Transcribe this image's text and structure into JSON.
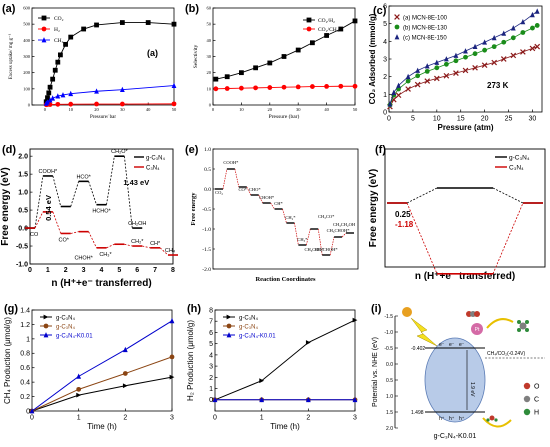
{
  "chart_data": [
    {
      "type": "line",
      "panel_label": "(a)",
      "inner_label": "(a)",
      "xlabel": "Pressure/ bar",
      "ylabel": "Excess uptake/ mg g⁻¹",
      "xlim": [
        -5,
        50
      ],
      "ylim": [
        0,
        600
      ],
      "xticks": [
        0,
        10,
        20,
        30,
        40,
        50
      ],
      "yticks": [
        0,
        100,
        200,
        300,
        400,
        500,
        600
      ],
      "legend_position": "top-left",
      "series": [
        {
          "name": "CO₂",
          "color": "#000000",
          "marker": "square",
          "x": [
            0.5,
            1,
            1.5,
            2,
            3,
            4,
            5,
            6,
            8,
            10,
            15,
            20,
            30,
            40,
            50
          ],
          "y": [
            20,
            45,
            75,
            110,
            160,
            215,
            265,
            310,
            375,
            420,
            470,
            495,
            510,
            510,
            500
          ]
        },
        {
          "name": "H₂",
          "color": "#ff0000",
          "marker": "circle",
          "x": [
            0.5,
            1,
            2,
            5,
            10,
            20,
            30,
            50
          ],
          "y": [
            2,
            3,
            3,
            4,
            5,
            6,
            6,
            7
          ]
        },
        {
          "name": "CH₄",
          "color": "#0000ff",
          "marker": "triangle",
          "x": [
            0.5,
            1,
            2,
            3,
            5,
            7,
            10,
            20,
            30,
            50
          ],
          "y": [
            10,
            18,
            30,
            42,
            55,
            62,
            70,
            85,
            95,
            120
          ]
        }
      ]
    },
    {
      "type": "line",
      "panel_label": "(b)",
      "xlabel": "Pressure (bar)",
      "ylabel": "Selectivity",
      "xlim": [
        0,
        50
      ],
      "ylim": [
        0,
        60
      ],
      "xticks": [
        0,
        10,
        20,
        30,
        40,
        50
      ],
      "yticks": [
        0,
        10,
        20,
        30,
        40,
        50,
        60
      ],
      "legend_position": "top-right",
      "series": [
        {
          "name": "CO₂/H₂",
          "color": "#000000",
          "marker": "square",
          "x": [
            1,
            5,
            10,
            15,
            20,
            25,
            30,
            35,
            40,
            45,
            50
          ],
          "y": [
            16,
            17.5,
            20,
            23,
            26,
            30,
            34,
            38.5,
            43,
            47,
            52
          ]
        },
        {
          "name": "CO₂/CH₄",
          "color": "#ff0000",
          "marker": "circle",
          "x": [
            1,
            5,
            10,
            15,
            20,
            25,
            30,
            35,
            40,
            45,
            50
          ],
          "y": [
            10,
            10.2,
            10.4,
            10.6,
            10.8,
            11,
            11.2,
            11.4,
            11.5,
            11.6,
            11.6
          ]
        }
      ]
    },
    {
      "type": "line",
      "panel_label": "(c)",
      "xlabel": "Pressure (atm)",
      "ylabel": "CO₂ Adsorbed (mmol/g)",
      "annotation": "273 K",
      "xlim": [
        0,
        32
      ],
      "ylim": [
        0,
        6
      ],
      "xticks": [
        0,
        5,
        10,
        15,
        20,
        25,
        30
      ],
      "yticks": [
        0,
        1,
        2,
        3,
        4,
        5,
        6
      ],
      "legend_position": "top-left",
      "series": [
        {
          "name": "(a)  MCN-8E-100",
          "color": "#8b1a1a",
          "marker": "x",
          "x": [
            0.2,
            1,
            2,
            4,
            6,
            8,
            10,
            12,
            14,
            16,
            18,
            20,
            22,
            24,
            26,
            28,
            30,
            31
          ],
          "y": [
            0.3,
            0.7,
            0.95,
            1.3,
            1.55,
            1.75,
            1.9,
            2.05,
            2.2,
            2.35,
            2.5,
            2.65,
            2.8,
            3.0,
            3.2,
            3.4,
            3.6,
            3.7
          ]
        },
        {
          "name": "(b)  MCN-8E-130",
          "color": "#1a8c1a",
          "marker": "circle",
          "x": [
            0.2,
            1,
            2,
            4,
            6,
            8,
            10,
            12,
            14,
            16,
            18,
            20,
            22,
            24,
            26,
            28,
            30,
            31
          ],
          "y": [
            0.4,
            0.95,
            1.3,
            1.75,
            2.05,
            2.3,
            2.5,
            2.7,
            2.9,
            3.1,
            3.3,
            3.5,
            3.7,
            3.95,
            4.2,
            4.5,
            4.75,
            4.9
          ]
        },
        {
          "name": "(c)  MCN-8E-150",
          "color": "#1a237e",
          "marker": "triangle",
          "x": [
            0.2,
            1,
            2,
            4,
            6,
            8,
            10,
            12,
            14,
            16,
            18,
            20,
            22,
            24,
            26,
            28,
            30,
            31
          ],
          "y": [
            0.45,
            1.1,
            1.5,
            2.0,
            2.35,
            2.6,
            2.8,
            3.0,
            3.2,
            3.45,
            3.7,
            3.95,
            4.2,
            4.45,
            4.75,
            5.1,
            5.5,
            5.7
          ]
        }
      ]
    },
    {
      "type": "line",
      "panel_label": "(d)",
      "xlabel": "n (H⁺+e⁻ transferred)",
      "ylabel": "Free energy (eV)",
      "xlim": [
        0,
        8
      ],
      "ylim": [
        -1.0,
        2.2
      ],
      "xticks": [
        0,
        1,
        2,
        3,
        4,
        5,
        6,
        7,
        8
      ],
      "yticks": [
        -1.0,
        -0.5,
        0.0,
        0.5,
        1.0,
        1.5,
        2.0
      ],
      "legend_position": "top-right",
      "series": [
        {
          "name": "g-C₃N₄",
          "color": "#000000",
          "x": [
            0,
            1,
            2,
            3,
            4,
            5,
            6
          ],
          "y": [
            0,
            1.45,
            0.6,
            1.3,
            0.65,
            2.0,
            0.0
          ]
        },
        {
          "name": "C₃N₄",
          "color": "#cc0000",
          "x": [
            0,
            1,
            2,
            3,
            4,
            5,
            6,
            7,
            8
          ],
          "y": [
            0,
            0.45,
            -0.15,
            -0.1,
            -0.55,
            -0.45,
            -0.5,
            -0.55,
            -0.75
          ]
        }
      ],
      "annotations": [
        "COOH*",
        "HCO*",
        "CH₂O*",
        "1.43 eV",
        "HCHO*",
        "CH₂OH",
        "0.54 eV",
        "CO",
        "CO*",
        "CH₃*",
        "CHOH*",
        "CH₂*",
        "CH₄",
        "CH*"
      ]
    },
    {
      "type": "line",
      "panel_label": "(e)",
      "xlabel": "Reaction Coordinates",
      "ylabel": "Free energy",
      "xlim": [
        0,
        12
      ],
      "ylim": [
        -2.0,
        1.0
      ],
      "yticks": [
        -2.0,
        -1.5,
        -1.0,
        -0.5,
        0.0,
        0.5,
        1.0
      ],
      "series": [
        {
          "name": "pathway",
          "color": "#cc0000",
          "x": [
            0,
            1,
            2,
            3,
            4,
            5,
            6,
            7,
            8,
            9,
            10,
            11
          ],
          "y": [
            0,
            0.5,
            0.05,
            -0.15,
            -0.35,
            -0.5,
            -0.85,
            -1.4,
            -1.0,
            -1.65,
            -1.2,
            -1.1
          ]
        }
      ],
      "annotations": [
        "COOH*",
        "CHOH*",
        "CO₂",
        "CO*",
        "CHO*",
        "CH*",
        "CH₂*",
        "CH₃*",
        "CH₃CO*",
        "CH₃CHOH*",
        "CH₃CH₂OH",
        "CH₂CHOH*",
        "CH₃CHO*"
      ]
    },
    {
      "type": "line",
      "panel_label": "(f)",
      "xlabel": "n (H⁺+e⁻ transferred)",
      "ylabel": "Free energy (eV)",
      "legend_position": "top-right",
      "series": [
        {
          "name": "g-C₃N₄",
          "color": "#000000",
          "levels": [
            0,
            0.25,
            0
          ]
        },
        {
          "name": "C₃N₄",
          "color": "#cc0000",
          "levels": [
            0,
            -1.18,
            0
          ]
        }
      ],
      "annotations": [
        "0.25",
        "-1.18"
      ]
    },
    {
      "type": "line",
      "panel_label": "(g)",
      "xlabel": "Time (h)",
      "ylabel": "CH₄ Production (μmol/g)",
      "xlim": [
        0,
        3
      ],
      "ylim": [
        0,
        1.4
      ],
      "xticks": [
        0,
        1,
        2,
        3
      ],
      "yticks": [
        0.0,
        0.2,
        0.4,
        0.6,
        0.8,
        1.0,
        1.2,
        1.4
      ],
      "legend_position": "top-left",
      "series": [
        {
          "name": "g-C₃N₄",
          "color": "#000000",
          "marker": "triangle-right",
          "x": [
            0,
            1,
            2,
            3
          ],
          "y": [
            0,
            0.22,
            0.35,
            0.47
          ]
        },
        {
          "name": "g-C₃N₄",
          "color": "#8b4513",
          "marker": "circle",
          "x": [
            0,
            1,
            2,
            3
          ],
          "y": [
            0,
            0.3,
            0.52,
            0.75
          ]
        },
        {
          "name": "g-C₃N₄-K0.01",
          "color": "#0000cc",
          "marker": "triangle",
          "x": [
            0,
            1,
            2,
            3
          ],
          "y": [
            0,
            0.48,
            0.85,
            1.25
          ]
        }
      ]
    },
    {
      "type": "line",
      "panel_label": "(h)",
      "xlabel": "Time (h)",
      "ylabel": "H₂ Production (μmol/g)",
      "xlim": [
        0,
        3
      ],
      "ylim": [
        -1,
        8
      ],
      "xticks": [
        0,
        1,
        2,
        3
      ],
      "yticks": [
        0,
        1,
        2,
        3,
        4,
        5,
        6,
        7,
        8
      ],
      "legend_position": "top-left",
      "series": [
        {
          "name": "g-C₃N₄",
          "color": "#000000",
          "marker": "triangle-right",
          "x": [
            0,
            1,
            2,
            3
          ],
          "y": [
            0,
            1.7,
            5.1,
            7.1
          ]
        },
        {
          "name": "g-C₃N₄",
          "color": "#8b4513",
          "marker": "circle",
          "x": [
            0,
            1,
            2,
            3
          ],
          "y": [
            0,
            0,
            0,
            0
          ]
        },
        {
          "name": "g-C₃N₄-K0.01",
          "color": "#0000cc",
          "marker": "triangle",
          "x": [
            0,
            1,
            2,
            3
          ],
          "y": [
            0,
            0,
            0,
            0
          ]
        }
      ]
    }
  ],
  "panel_i": {
    "panel_label": "(i)",
    "ylabel": "Potential vs. NHE (eV)",
    "yticks": [
      "-1.5",
      "-1.0",
      "-0.5",
      "0.0",
      "0.5",
      "1.0",
      "1.5",
      "2.0"
    ],
    "cb_value": "-0.402",
    "vb_value": "1.498",
    "gap": "1.9 eV",
    "electron": "e⁻",
    "hole": "h⁺",
    "redox": "CH₄/CO₂(-0.24V)",
    "cocatalyst": "Pt",
    "catalyst_label": "g-C₃N₄-K0.01",
    "legend": [
      "O",
      "C",
      "H"
    ],
    "colors": {
      "sphere": "#b8cbe8",
      "pt": "#d46aa6",
      "sun": "#e8a020",
      "bolt": "#f5e020",
      "arrow": "#e8c000",
      "o": "#c0392b",
      "c": "#7f7f7f",
      "h": "#2e8b3a"
    }
  }
}
